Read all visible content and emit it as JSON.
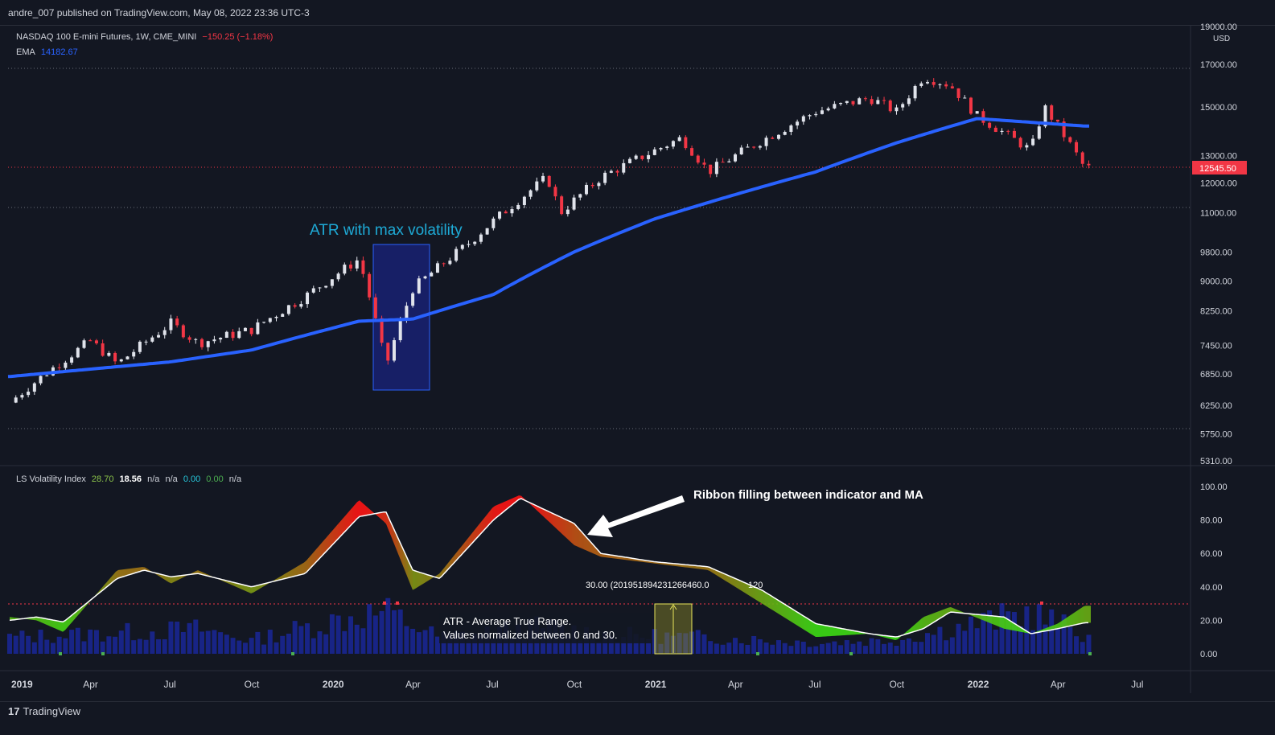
{
  "header": {
    "published": "andre_007 published on TradingView.com, May 08, 2022 23:36 UTC-3"
  },
  "main_legend": {
    "symbol": "NASDAQ 100 E-mini Futures, 1W, CME_MINI",
    "change": "−150.25 (−1.18%)",
    "ema_label": "EMA",
    "ema_value": "14182.67"
  },
  "sub_legend": {
    "name": "LS Volatility Index",
    "v1": "28.70",
    "v2": "18.56",
    "v3": "n/a",
    "v4": "n/a",
    "v5": "0.00",
    "v6": "0.00",
    "v7": "n/a"
  },
  "annotations": {
    "atr_box_title": "ATR with max volatility",
    "ribbon_note": "Ribbon filling between indicator and MA",
    "atr_note_line1": "ATR - Average True Range.",
    "atr_note_line2": "Values normalized between 0 and 30.",
    "level_label": "30.00 (201951894231266460.0",
    "level_label_tail": "120"
  },
  "colors": {
    "background": "#131722",
    "ema": "#2962ff",
    "up_candle": "#e0e3eb",
    "down_candle": "#f23645",
    "price_marker": "#f23645",
    "annotation_cyan": "#1eaad6",
    "box_fill": "#1a237e",
    "atr_area": "#1e2fd8"
  },
  "brand": {
    "logo": "17",
    "name": "TradingView"
  },
  "chart_data": [
    {
      "type": "candlestick",
      "title": "NASDAQ 100 E-mini Futures, 1W, CME_MINI",
      "y_axis_unit": "USD",
      "y_scale": "log",
      "y_ticks": [
        5310,
        5750,
        6250,
        6850,
        7450,
        8250,
        9000,
        9800,
        11000,
        12000,
        13000,
        15000,
        17000,
        19000
      ],
      "y_tick_labels": [
        "5310.00",
        "5750.00",
        "6250.00",
        "6850.00",
        "7450.00",
        "8250.00",
        "9000.00",
        "9800.00",
        "11000.00",
        "12000.00",
        "13000.00",
        "15000.00",
        "17000.00",
        "19000.00"
      ],
      "last_price": 12545.5,
      "last_price_label": "12545.50",
      "x_tick_labels": [
        "2019",
        "Apr",
        "Jul",
        "Oct",
        "2020",
        "Apr",
        "Jul",
        "Oct",
        "2021",
        "Apr",
        "Jul",
        "Oct",
        "2022",
        "Apr",
        "Jul"
      ],
      "price_close_approx": [
        {
          "date": "2019-01",
          "close": 6300
        },
        {
          "date": "2019-04",
          "close": 7550
        },
        {
          "date": "2019-05",
          "close": 7050
        },
        {
          "date": "2019-07",
          "close": 7950
        },
        {
          "date": "2019-08",
          "close": 7500
        },
        {
          "date": "2019-10",
          "close": 7800
        },
        {
          "date": "2019-12",
          "close": 8600
        },
        {
          "date": "2020-02",
          "close": 9600
        },
        {
          "date": "2020-03",
          "close": 7000
        },
        {
          "date": "2020-04",
          "close": 8800
        },
        {
          "date": "2020-06",
          "close": 10000
        },
        {
          "date": "2020-09",
          "close": 12200
        },
        {
          "date": "2020-09-late",
          "close": 11000
        },
        {
          "date": "2020-11",
          "close": 12200
        },
        {
          "date": "2021-02",
          "close": 13700
        },
        {
          "date": "2021-03",
          "close": 12400
        },
        {
          "date": "2021-05",
          "close": 13600
        },
        {
          "date": "2021-07",
          "close": 14800
        },
        {
          "date": "2021-09",
          "close": 15400
        },
        {
          "date": "2021-10",
          "close": 14800
        },
        {
          "date": "2021-11",
          "close": 16400
        },
        {
          "date": "2021-12",
          "close": 16000
        },
        {
          "date": "2022-01",
          "close": 14600
        },
        {
          "date": "2022-03",
          "close": 13200
        },
        {
          "date": "2022-03-late",
          "close": 15000
        },
        {
          "date": "2022-05",
          "close": 12545.5
        }
      ],
      "ema_approx": [
        {
          "date": "2019-01",
          "value": 6800
        },
        {
          "date": "2019-07",
          "value": 7100
        },
        {
          "date": "2019-10",
          "value": 7350
        },
        {
          "date": "2020-02",
          "value": 8000
        },
        {
          "date": "2020-04",
          "value": 8050
        },
        {
          "date": "2020-07",
          "value": 8650
        },
        {
          "date": "2020-10",
          "value": 9800
        },
        {
          "date": "2021-01",
          "value": 10800
        },
        {
          "date": "2021-04",
          "value": 11600
        },
        {
          "date": "2021-07",
          "value": 12400
        },
        {
          "date": "2021-10",
          "value": 13500
        },
        {
          "date": "2022-01",
          "value": 14500
        },
        {
          "date": "2022-05",
          "value": 14182.67
        }
      ]
    },
    {
      "type": "line",
      "title": "LS Volatility Index",
      "ylim": [
        0,
        100
      ],
      "y_ticks": [
        0,
        20,
        40,
        60,
        80,
        100
      ],
      "y_tick_labels": [
        "0.00",
        "20.00",
        "40.00",
        "60.00",
        "80.00",
        "100.00"
      ],
      "level": 30,
      "series_approx": [
        {
          "date": "2019-01",
          "index": 22,
          "ma": 20
        },
        {
          "date": "2019-02",
          "index": 20,
          "ma": 22
        },
        {
          "date": "2019-03",
          "index": 13,
          "ma": 19
        },
        {
          "date": "2019-05",
          "index": 50,
          "ma": 45
        },
        {
          "date": "2019-06",
          "index": 52,
          "ma": 50
        },
        {
          "date": "2019-07",
          "index": 42,
          "ma": 46
        },
        {
          "date": "2019-08",
          "index": 50,
          "ma": 48
        },
        {
          "date": "2019-10",
          "index": 36,
          "ma": 40
        },
        {
          "date": "2019-12",
          "index": 55,
          "ma": 48
        },
        {
          "date": "2020-02",
          "index": 92,
          "ma": 82
        },
        {
          "date": "2020-03",
          "index": 78,
          "ma": 85
        },
        {
          "date": "2020-04",
          "index": 38,
          "ma": 50
        },
        {
          "date": "2020-05",
          "index": 48,
          "ma": 45
        },
        {
          "date": "2020-07",
          "index": 88,
          "ma": 80
        },
        {
          "date": "2020-08",
          "index": 95,
          "ma": 93
        },
        {
          "date": "2020-10",
          "index": 65,
          "ma": 78
        },
        {
          "date": "2020-11",
          "index": 58,
          "ma": 60
        },
        {
          "date": "2021-01",
          "index": 54,
          "ma": 55
        },
        {
          "date": "2021-03",
          "index": 50,
          "ma": 52
        },
        {
          "date": "2021-05",
          "index": 30,
          "ma": 38
        },
        {
          "date": "2021-07",
          "index": 10,
          "ma": 18
        },
        {
          "date": "2021-09",
          "index": 12,
          "ma": 12
        },
        {
          "date": "2021-10",
          "index": 8,
          "ma": 10
        },
        {
          "date": "2021-11",
          "index": 22,
          "ma": 15
        },
        {
          "date": "2021-12",
          "index": 28,
          "ma": 25
        },
        {
          "date": "2022-02",
          "index": 15,
          "ma": 22
        },
        {
          "date": "2022-03",
          "index": 12,
          "ma": 12
        },
        {
          "date": "2022-04",
          "index": 18,
          "ma": 15
        },
        {
          "date": "2022-05",
          "index": 28.7,
          "ma": 18.56
        }
      ],
      "atr_normalized_0_30_approx": [
        {
          "date": "2019-01",
          "value": 12
        },
        {
          "date": "2019-06",
          "value": 16
        },
        {
          "date": "2019-08",
          "value": 18
        },
        {
          "date": "2019-10",
          "value": 10
        },
        {
          "date": "2020-02",
          "value": 28
        },
        {
          "date": "2020-03",
          "value": 30
        },
        {
          "date": "2020-05",
          "value": 12
        },
        {
          "date": "2020-09",
          "value": 20
        },
        {
          "date": "2020-11",
          "value": 14
        },
        {
          "date": "2021-03",
          "value": 12
        },
        {
          "date": "2021-07",
          "value": 8
        },
        {
          "date": "2021-10",
          "value": 10
        },
        {
          "date": "2022-01",
          "value": 22
        },
        {
          "date": "2022-03",
          "value": 30
        },
        {
          "date": "2022-05",
          "value": 14
        }
      ]
    }
  ]
}
